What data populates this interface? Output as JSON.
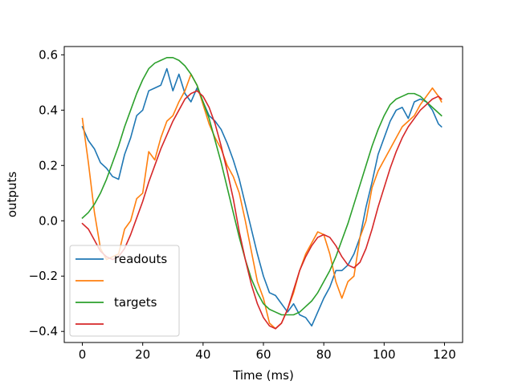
{
  "chart_data": {
    "type": "line",
    "title": "",
    "xlabel": "Time (ms)",
    "ylabel": "outputs",
    "xlim": [
      -6,
      126
    ],
    "ylim": [
      -0.44,
      0.63
    ],
    "x_ticks": [
      0,
      20,
      40,
      60,
      80,
      100,
      120
    ],
    "y_ticks": [
      -0.4,
      -0.2,
      0.0,
      0.2,
      0.4,
      0.6
    ],
    "x_tick_labels": [
      "0",
      "20",
      "40",
      "60",
      "80",
      "100",
      "120"
    ],
    "y_tick_labels": [
      "−0.4",
      "−0.2",
      "0.0",
      "0.2",
      "0.4",
      "0.6"
    ],
    "grid": false,
    "legend_position": "lower-left",
    "series": [
      {
        "name": "readouts",
        "color": "#1f77b4",
        "x": [
          0,
          2,
          4,
          6,
          8,
          10,
          12,
          14,
          16,
          18,
          20,
          22,
          24,
          26,
          28,
          30,
          32,
          34,
          36,
          38,
          40,
          42,
          44,
          46,
          48,
          50,
          52,
          54,
          56,
          58,
          60,
          62,
          64,
          66,
          68,
          70,
          72,
          74,
          76,
          78,
          80,
          82,
          84,
          86,
          88,
          90,
          92,
          94,
          96,
          98,
          100,
          102,
          104,
          106,
          108,
          110,
          112,
          114,
          116,
          118,
          119
        ],
        "values": [
          0.34,
          0.29,
          0.26,
          0.21,
          0.19,
          0.16,
          0.15,
          0.24,
          0.3,
          0.38,
          0.4,
          0.47,
          0.48,
          0.49,
          0.55,
          0.47,
          0.53,
          0.46,
          0.43,
          0.48,
          0.43,
          0.38,
          0.36,
          0.33,
          0.28,
          0.22,
          0.15,
          0.06,
          -0.03,
          -0.12,
          -0.2,
          -0.26,
          -0.27,
          -0.3,
          -0.33,
          -0.3,
          -0.34,
          -0.35,
          -0.38,
          -0.33,
          -0.28,
          -0.24,
          -0.18,
          -0.18,
          -0.16,
          -0.12,
          -0.06,
          0.05,
          0.14,
          0.24,
          0.3,
          0.36,
          0.4,
          0.41,
          0.37,
          0.43,
          0.44,
          0.43,
          0.4,
          0.35,
          0.34
        ]
      },
      {
        "name": "",
        "color": "#ff7f0e",
        "x": [
          0,
          2,
          4,
          6,
          8,
          10,
          12,
          14,
          16,
          18,
          20,
          22,
          24,
          26,
          28,
          30,
          32,
          34,
          36,
          38,
          40,
          42,
          44,
          46,
          48,
          50,
          52,
          54,
          56,
          58,
          60,
          62,
          64,
          66,
          68,
          70,
          72,
          74,
          76,
          78,
          80,
          82,
          84,
          86,
          88,
          90,
          92,
          94,
          96,
          98,
          100,
          102,
          104,
          106,
          108,
          110,
          112,
          114,
          116,
          118,
          119
        ],
        "values": [
          0.37,
          0.21,
          0.03,
          -0.1,
          -0.14,
          -0.13,
          -0.12,
          -0.03,
          0.0,
          0.08,
          0.1,
          0.25,
          0.22,
          0.3,
          0.36,
          0.38,
          0.43,
          0.47,
          0.53,
          0.49,
          0.42,
          0.35,
          0.3,
          0.26,
          0.2,
          0.16,
          0.1,
          0.0,
          -0.11,
          -0.22,
          -0.28,
          -0.37,
          -0.39,
          -0.37,
          -0.32,
          -0.26,
          -0.18,
          -0.12,
          -0.08,
          -0.04,
          -0.05,
          -0.12,
          -0.22,
          -0.28,
          -0.22,
          -0.2,
          -0.06,
          0.0,
          0.12,
          0.18,
          0.22,
          0.26,
          0.3,
          0.34,
          0.36,
          0.38,
          0.42,
          0.45,
          0.48,
          0.45,
          0.43
        ]
      },
      {
        "name": "targets",
        "color": "#2ca02c",
        "x": [
          0,
          2,
          4,
          6,
          8,
          10,
          12,
          14,
          16,
          18,
          20,
          22,
          24,
          26,
          28,
          30,
          32,
          34,
          36,
          38,
          40,
          42,
          44,
          46,
          48,
          50,
          52,
          54,
          56,
          58,
          60,
          62,
          64,
          66,
          68,
          70,
          72,
          74,
          76,
          78,
          80,
          82,
          84,
          86,
          88,
          90,
          92,
          94,
          96,
          98,
          100,
          102,
          104,
          106,
          108,
          110,
          112,
          114,
          116,
          118,
          119
        ],
        "values": [
          0.01,
          0.03,
          0.06,
          0.1,
          0.15,
          0.21,
          0.27,
          0.34,
          0.4,
          0.46,
          0.51,
          0.55,
          0.57,
          0.58,
          0.59,
          0.59,
          0.58,
          0.56,
          0.53,
          0.49,
          0.43,
          0.37,
          0.29,
          0.21,
          0.12,
          0.03,
          -0.06,
          -0.14,
          -0.21,
          -0.26,
          -0.3,
          -0.32,
          -0.33,
          -0.34,
          -0.34,
          -0.34,
          -0.33,
          -0.31,
          -0.29,
          -0.26,
          -0.22,
          -0.18,
          -0.13,
          -0.07,
          -0.01,
          0.06,
          0.13,
          0.2,
          0.27,
          0.33,
          0.38,
          0.42,
          0.44,
          0.45,
          0.46,
          0.46,
          0.45,
          0.43,
          0.41,
          0.39,
          0.38
        ]
      },
      {
        "name": "",
        "color": "#d62728",
        "x": [
          0,
          2,
          4,
          6,
          8,
          10,
          12,
          14,
          16,
          18,
          20,
          22,
          24,
          26,
          28,
          30,
          32,
          34,
          36,
          38,
          40,
          42,
          44,
          46,
          48,
          50,
          52,
          54,
          56,
          58,
          60,
          62,
          64,
          66,
          68,
          70,
          72,
          74,
          76,
          78,
          80,
          82,
          84,
          86,
          88,
          90,
          92,
          94,
          96,
          98,
          100,
          102,
          104,
          106,
          108,
          110,
          112,
          114,
          116,
          118,
          119
        ],
        "values": [
          -0.01,
          -0.03,
          -0.07,
          -0.11,
          -0.13,
          -0.14,
          -0.13,
          -0.1,
          -0.05,
          0.01,
          0.07,
          0.14,
          0.2,
          0.26,
          0.31,
          0.36,
          0.4,
          0.44,
          0.46,
          0.47,
          0.45,
          0.41,
          0.35,
          0.27,
          0.18,
          0.08,
          -0.04,
          -0.14,
          -0.23,
          -0.3,
          -0.35,
          -0.38,
          -0.39,
          -0.37,
          -0.32,
          -0.25,
          -0.18,
          -0.13,
          -0.09,
          -0.06,
          -0.05,
          -0.06,
          -0.09,
          -0.13,
          -0.16,
          -0.17,
          -0.15,
          -0.1,
          -0.03,
          0.05,
          0.12,
          0.19,
          0.25,
          0.3,
          0.34,
          0.37,
          0.4,
          0.42,
          0.44,
          0.45,
          0.44
        ]
      }
    ]
  }
}
